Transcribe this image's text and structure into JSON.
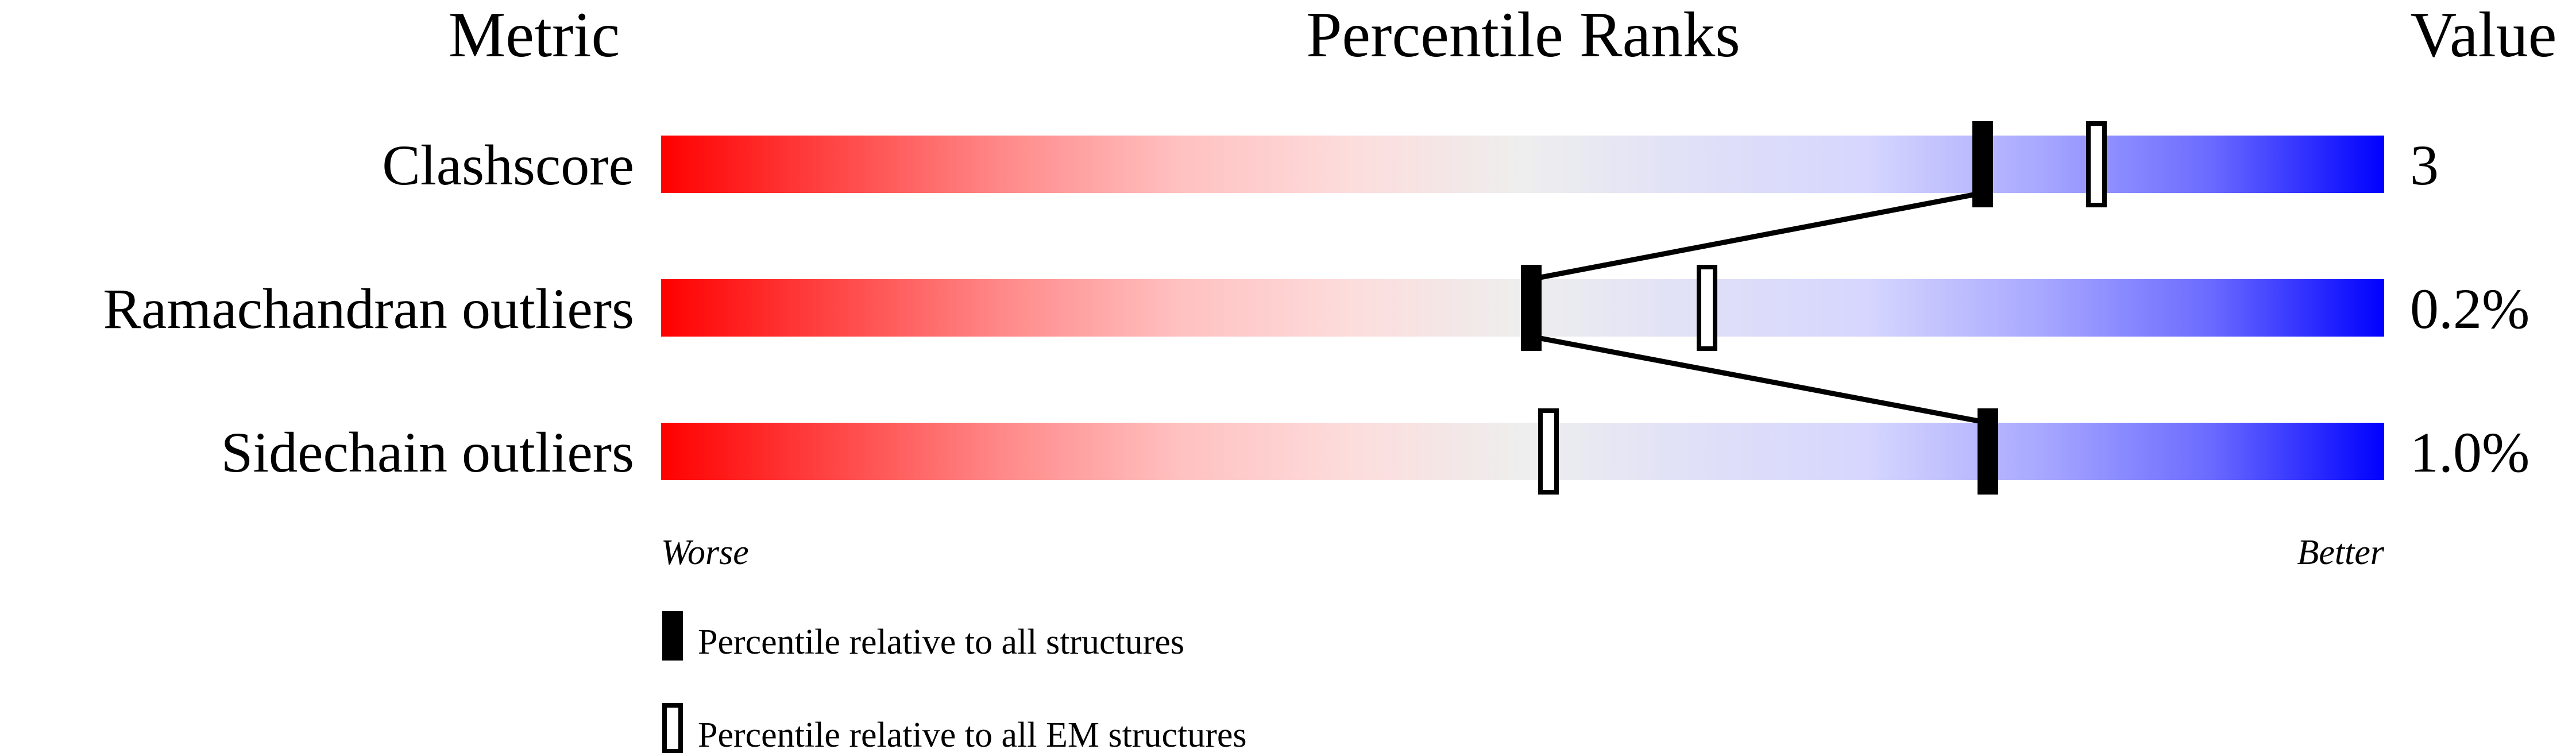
{
  "chart_data": {
    "type": "bar",
    "headers": {
      "metric": "Metric",
      "ranks": "Percentile Ranks",
      "value": "Value"
    },
    "xlim": [
      0,
      100
    ],
    "axis_labels": {
      "left": "Worse",
      "right": "Better"
    },
    "gradient_colors": [
      "#ff0000",
      "#eeeeee",
      "#0000ff"
    ],
    "rows": [
      {
        "metric": "Clashscore",
        "value": "3",
        "percentile_all": 76.7,
        "percentile_em": 83.3
      },
      {
        "metric": "Ramachandran outliers",
        "value": "0.2%",
        "percentile_all": 50.5,
        "percentile_em": 60.7
      },
      {
        "metric": "Sidechain outliers",
        "value": "1.0%",
        "percentile_all": 77.0,
        "percentile_em": 51.5
      }
    ],
    "legend": [
      {
        "marker": "filled",
        "label": "Percentile relative to all structures"
      },
      {
        "marker": "open",
        "label": "Percentile relative to all EM structures"
      }
    ]
  }
}
